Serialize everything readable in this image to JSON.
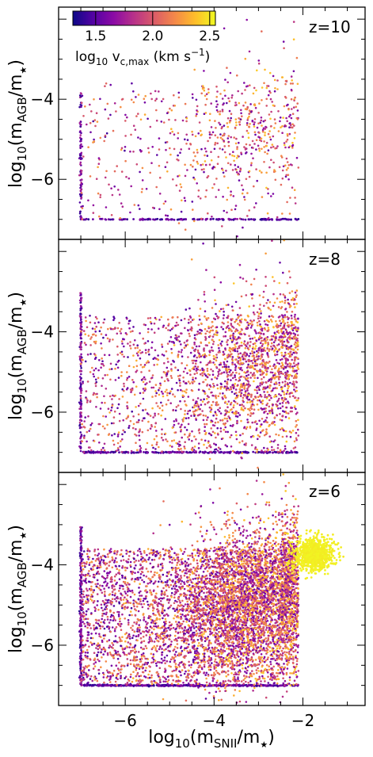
{
  "chart_data": [
    {
      "type": "scatter",
      "panel_label": "z=10",
      "ylabel_main": "log",
      "ylabel_sub": "10",
      "ylabel_inner": "(m",
      "ylabel_inner_sub": "AGB",
      "ylabel_tail": "/m",
      "ylabel_tail_sub": "★",
      "ylabel_close": ")",
      "xlim": [
        -7.5,
        -0.6
      ],
      "ylim": [
        -7.5,
        -1.7
      ],
      "yticks": [
        -4,
        -6
      ],
      "ytick_labels": [
        "−4",
        "−6"
      ],
      "n_scatter": 750,
      "floor_points": 160,
      "floor_y": -7.0
    },
    {
      "type": "scatter",
      "panel_label": "z=8",
      "ylabel_main": "log",
      "ylabel_sub": "10",
      "ylabel_inner": "(m",
      "ylabel_inner_sub": "AGB",
      "ylabel_tail": "/m",
      "ylabel_tail_sub": "★",
      "ylabel_close": ")",
      "xlim": [
        -7.5,
        -0.6
      ],
      "ylim": [
        -7.5,
        -1.7
      ],
      "yticks": [
        -4,
        -6
      ],
      "ytick_labels": [
        "−4",
        "−6"
      ],
      "n_scatter": 2400,
      "floor_points": 260,
      "floor_y": -7.0
    },
    {
      "type": "scatter",
      "panel_label": "z=6",
      "ylabel_main": "log",
      "ylabel_sub": "10",
      "ylabel_inner": "(m",
      "ylabel_inner_sub": "AGB",
      "ylabel_tail": "/m",
      "ylabel_tail_sub": "★",
      "ylabel_close": ")",
      "xlim": [
        -7.5,
        -0.6
      ],
      "ylim": [
        -7.5,
        -1.7
      ],
      "yticks": [
        -4,
        -6
      ],
      "ytick_labels": [
        "−4",
        "−6"
      ],
      "n_scatter": 6500,
      "floor_points": 420,
      "floor_y": -7.0
    }
  ],
  "xaxis": {
    "ticks": [
      -6,
      -4,
      -2
    ],
    "tick_labels": [
      "−6",
      "−4",
      "−2"
    ],
    "label_main": "log",
    "label_sub": "10",
    "label_inner": "(m",
    "label_inner_sub": "SNII",
    "label_tail": "/m",
    "label_tail_sub": "★",
    "label_close": ")"
  },
  "colorbar": {
    "cmap": "plasma",
    "range": [
      1.3,
      2.55
    ],
    "ticks": [
      1.5,
      2.0,
      2.5
    ],
    "tick_labels": [
      "1.5",
      "2.0",
      "2.5"
    ],
    "label_main": "log",
    "label_sub": "10",
    "label_v": " v",
    "label_v_sub": "c,max",
    "label_units": "(km s",
    "label_units_sup": "−1",
    "label_close": ")"
  },
  "colors": {
    "plasma_stops": [
      "#0d0887",
      "#5302a3",
      "#8b0aa5",
      "#b83289",
      "#db5c68",
      "#f48849",
      "#febd2a",
      "#f0f921"
    ]
  }
}
